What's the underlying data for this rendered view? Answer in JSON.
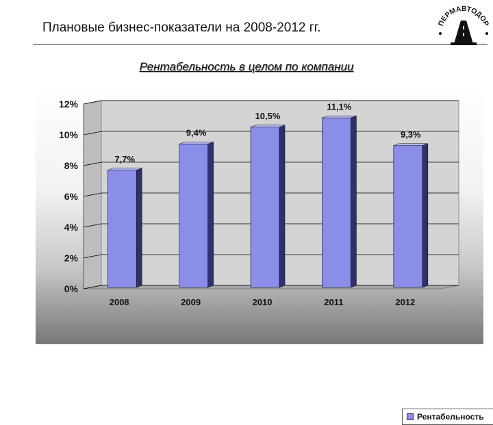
{
  "slide": {
    "title": "Плановые бизнес-показатели на 2008-2012 гг."
  },
  "logo": {
    "text": "ПЕРМАВТОДОР"
  },
  "colors": {
    "bar_front": "#8a8ee8",
    "bar_side": "#2e3070",
    "bar_top": "#b4b8f4",
    "wall": "#d4d4d4"
  },
  "chart_data": {
    "type": "bar",
    "title": "Рентабельность в целом по компании",
    "categories": [
      "2008",
      "2009",
      "2010",
      "2011",
      "2012"
    ],
    "series": [
      {
        "name": "Рентабельность",
        "values": [
          7.7,
          9.4,
          10.5,
          11.1,
          9.3
        ],
        "labels": [
          "7,7%",
          "9,4%",
          "10,5%",
          "11,1%",
          "9,3%"
        ]
      }
    ],
    "ylim": [
      0,
      12
    ],
    "yticks": [
      {
        "value": 0,
        "label": "0%"
      },
      {
        "value": 2,
        "label": "2%"
      },
      {
        "value": 4,
        "label": "4%"
      },
      {
        "value": 6,
        "label": "6%"
      },
      {
        "value": 8,
        "label": "8%"
      },
      {
        "value": 10,
        "label": "10%"
      },
      {
        "value": 12,
        "label": "12%"
      }
    ],
    "grid": true,
    "legend_position": "bottom-right",
    "three_d": true
  }
}
